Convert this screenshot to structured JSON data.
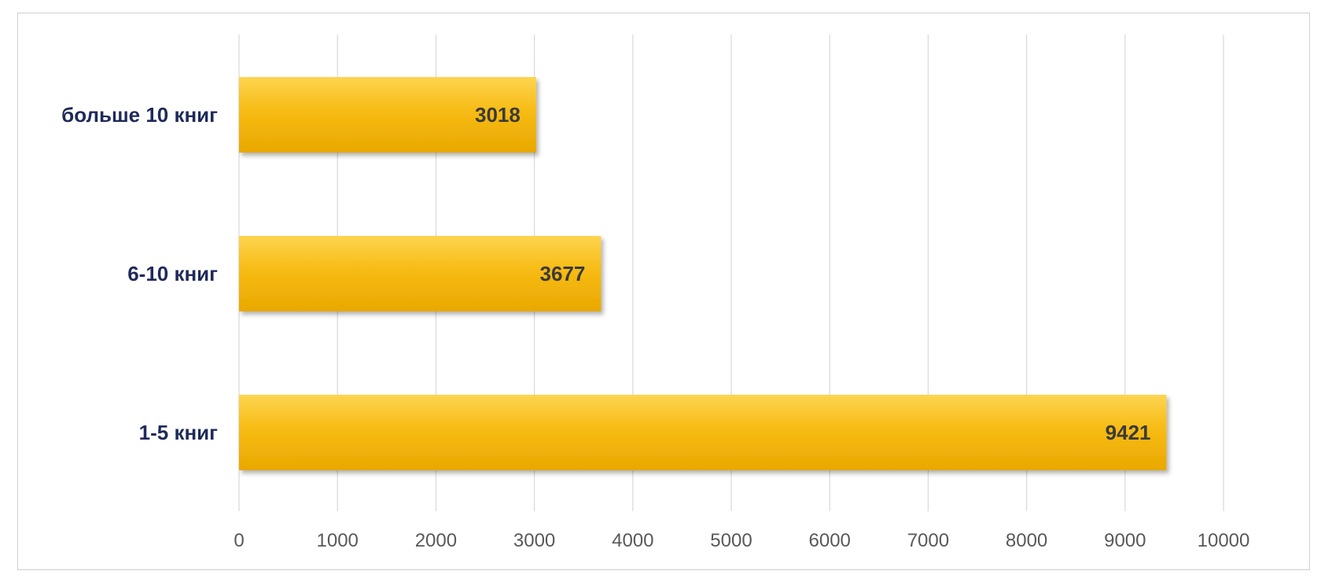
{
  "chart_data": {
    "type": "bar",
    "orientation": "horizontal",
    "categories": [
      "больше 10 книг",
      "6-10 книг",
      "1-5 книг"
    ],
    "values": [
      3018,
      3677,
      9421
    ],
    "data_labels": [
      "3018",
      "3677",
      "9421"
    ],
    "xlim": [
      0,
      10000
    ],
    "x_ticks": [
      "0",
      "1000",
      "2000",
      "3000",
      "4000",
      "5000",
      "6000",
      "7000",
      "8000",
      "9000",
      "10000"
    ],
    "grid": "vertical",
    "bar_color": "#f7bb14",
    "bar_color_light": "#fdd450",
    "bar_color_dark": "#e9a800",
    "category_label_color": "#1f2a5a",
    "tick_label_color": "#595959",
    "grid_color": "#d9d9d9"
  }
}
